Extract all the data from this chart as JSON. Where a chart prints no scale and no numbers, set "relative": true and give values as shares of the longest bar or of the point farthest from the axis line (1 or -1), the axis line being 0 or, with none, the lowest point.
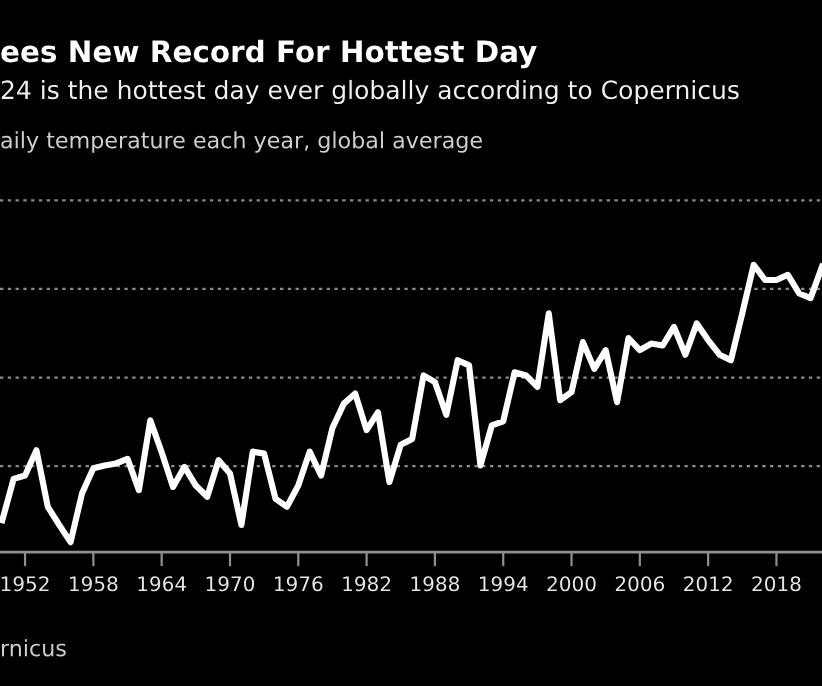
{
  "chart_data": {
    "type": "line",
    "title": "ees New Record For Hottest Day",
    "subtitle": "24 is the hottest day ever globally according to Copernicus",
    "annotations": [
      "aily temperature each year, global average",
      "rnicus"
    ],
    "relative": true,
    "x": [
      1950,
      1951,
      1952,
      1953,
      1954,
      1955,
      1956,
      1957,
      1958,
      1959,
      1960,
      1961,
      1962,
      1963,
      1964,
      1965,
      1966,
      1967,
      1968,
      1969,
      1970,
      1971,
      1972,
      1973,
      1974,
      1975,
      1976,
      1977,
      1978,
      1979,
      1980,
      1981,
      1982,
      1983,
      1984,
      1985,
      1986,
      1987,
      1988,
      1989,
      1990,
      1991,
      1992,
      1993,
      1994,
      1995,
      1996,
      1997,
      1998,
      1999,
      2000,
      2001,
      2002,
      2003,
      2004,
      2005,
      2006,
      2007,
      2008,
      2009,
      2010,
      2011,
      2012,
      2013,
      2014,
      2015,
      2016,
      2017,
      2018,
      2019,
      2020,
      2021,
      2022
    ],
    "series": [
      {
        "color": "#ffffff",
        "values": [
          0.111,
          0.255,
          0.267,
          0.355,
          0.158,
          0.095,
          0.035,
          0.204,
          0.292,
          0.302,
          0.309,
          0.325,
          0.216,
          0.459,
          0.348,
          0.227,
          0.297,
          0.232,
          0.193,
          0.32,
          0.274,
          0.095,
          0.35,
          0.343,
          0.186,
          0.158,
          0.232,
          0.35,
          0.267,
          0.432,
          0.517,
          0.552,
          0.425,
          0.487,
          0.244,
          0.374,
          0.394,
          0.615,
          0.592,
          0.478,
          0.668,
          0.65,
          0.302,
          0.441,
          0.455,
          0.626,
          0.615,
          0.575,
          0.831,
          0.529,
          0.557,
          0.731,
          0.638,
          0.703,
          0.522,
          0.745,
          0.703,
          0.726,
          0.719,
          0.784,
          0.687,
          0.796,
          0.738,
          0.687,
          0.668,
          0.831,
          1.0,
          0.947,
          0.947,
          0.965,
          0.9,
          0.884,
          0.993
        ]
      }
    ],
    "xlim": [
      1949.8,
      2022.0
    ],
    "xticks": [
      1952,
      1958,
      1964,
      1970,
      1976,
      1982,
      1988,
      1994,
      2000,
      2006,
      2012,
      2018
    ],
    "grid": "y",
    "tick_labels": "x",
    "line_style": "solid",
    "marker": "none"
  }
}
